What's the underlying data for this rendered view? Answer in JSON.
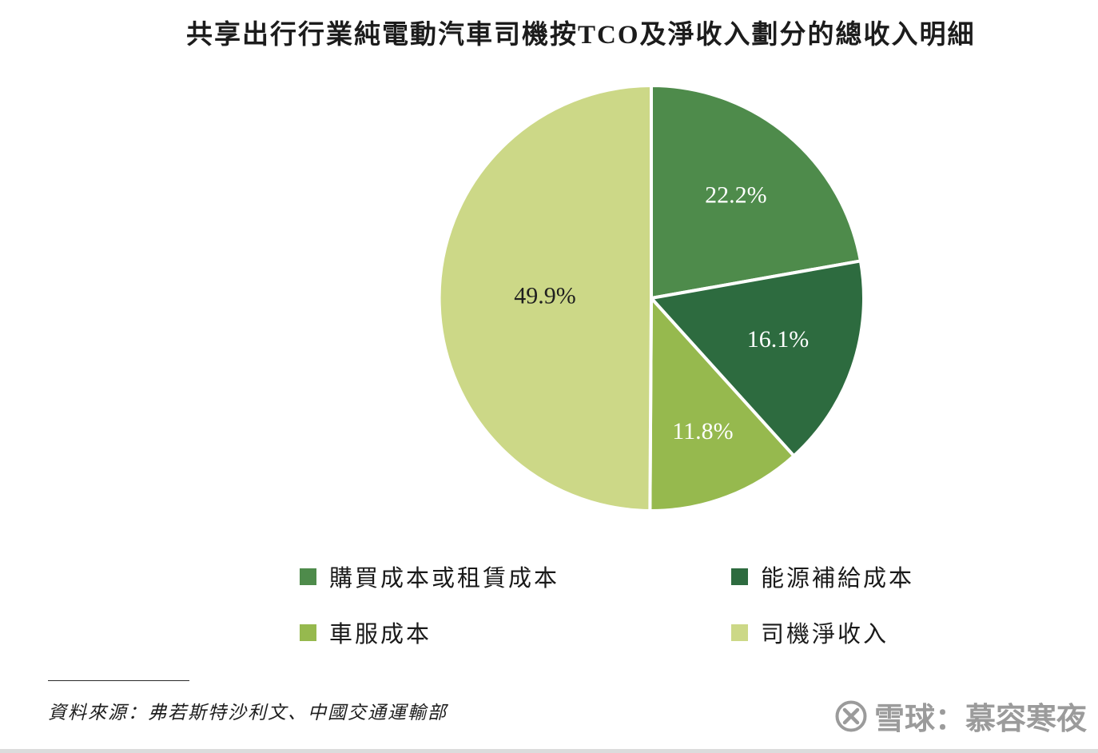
{
  "title": "共享出行行業純電動汽車司機按TCO及淨收入劃分的總收入明細",
  "chart_data": {
    "type": "pie",
    "title": "共享出行行業純電動汽車司機按TCO及淨收入劃分的總收入明細",
    "labels": [
      "購買成本或租賃成本",
      "能源補給成本",
      "車服成本",
      "司機淨收入"
    ],
    "values": [
      22.2,
      16.1,
      11.8,
      49.9
    ],
    "value_labels": [
      "22.2%",
      "16.1%",
      "11.8%",
      "49.9%"
    ],
    "colors": [
      "#4e8b4b",
      "#2d6b3f",
      "#96b94e",
      "#ccd887"
    ],
    "value_label_colors": [
      "#ffffff",
      "#ffffff",
      "#ffffff",
      "#1f1f1f"
    ],
    "label_radius": [
      0.62,
      0.63,
      0.68,
      0.5
    ],
    "start_angle_deg": 0,
    "direction": "clockwise",
    "slice_gap_stroke": "#ffffff",
    "legend_position": "bottom"
  },
  "legend": {
    "items": [
      {
        "label": "購買成本或租賃成本",
        "color": "#4e8b4b"
      },
      {
        "label": "能源補給成本",
        "color": "#2d6b3f"
      },
      {
        "label": "車服成本",
        "color": "#96b94e"
      },
      {
        "label": "司機淨收入",
        "color": "#ccd887"
      }
    ]
  },
  "source": {
    "text": "資料來源：弗若斯特沙利文、中國交通運輸部"
  },
  "watermark": {
    "text": "雪球：慕容寒夜",
    "logo": "xueqiu-logo"
  }
}
